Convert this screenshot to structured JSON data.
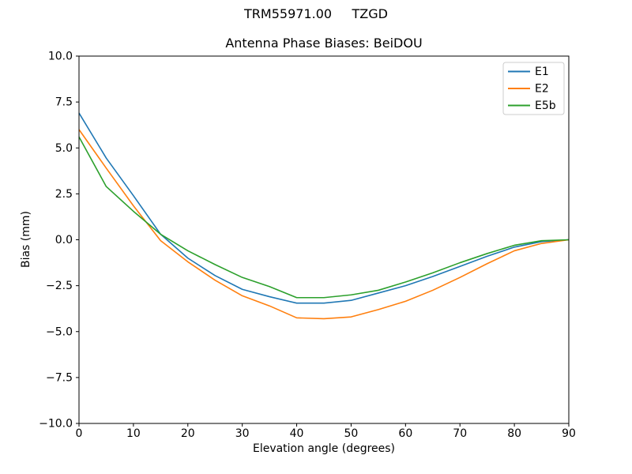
{
  "window": {
    "background": "#ffffff"
  },
  "suptitle": "TRM55971.00     TZGD",
  "chart_data": {
    "type": "line",
    "title": "Antenna Phase Biases: BeiDOU",
    "xlabel": "Elevation angle (degrees)",
    "ylabel": "Bias (mm)",
    "xlim": [
      0,
      90
    ],
    "ylim": [
      -10,
      10
    ],
    "xticks": [
      0,
      10,
      20,
      30,
      40,
      50,
      60,
      70,
      80,
      90
    ],
    "xtick_labels": [
      "0",
      "10",
      "20",
      "30",
      "40",
      "50",
      "60",
      "70",
      "80",
      "90"
    ],
    "yticks": [
      10.0,
      7.5,
      5.0,
      2.5,
      0.0,
      -2.5,
      -5.0,
      -7.5,
      -10.0
    ],
    "ytick_labels": [
      "10.0",
      "7.5",
      "5.0",
      "2.5",
      "0.0",
      "−2.5",
      "−5.0",
      "−7.5",
      "−10.0"
    ],
    "grid": false,
    "axis_color": "#000000",
    "legend": {
      "position": "upper right",
      "border_color": "#cccccc",
      "entries": [
        "E1",
        "E2",
        "E5b"
      ]
    },
    "x": [
      0,
      5,
      10,
      15,
      20,
      25,
      30,
      35,
      40,
      45,
      50,
      55,
      60,
      65,
      70,
      75,
      80,
      85,
      90
    ],
    "series": [
      {
        "name": "E1",
        "color": "#1f77b4",
        "values": [
          6.9,
          4.45,
          2.4,
          0.3,
          -1.0,
          -1.95,
          -2.7,
          -3.1,
          -3.45,
          -3.45,
          -3.3,
          -2.9,
          -2.5,
          -2.0,
          -1.45,
          -0.9,
          -0.4,
          -0.1,
          0.0
        ]
      },
      {
        "name": "E2",
        "color": "#ff7f0e",
        "values": [
          6.0,
          3.9,
          1.85,
          -0.05,
          -1.2,
          -2.2,
          -3.05,
          -3.6,
          -4.25,
          -4.3,
          -4.2,
          -3.8,
          -3.35,
          -2.75,
          -2.05,
          -1.3,
          -0.6,
          -0.2,
          0.0
        ]
      },
      {
        "name": "E5b",
        "color": "#2ca02c",
        "values": [
          5.6,
          2.9,
          1.55,
          0.3,
          -0.6,
          -1.35,
          -2.05,
          -2.55,
          -3.15,
          -3.15,
          -3.0,
          -2.75,
          -2.3,
          -1.8,
          -1.25,
          -0.75,
          -0.3,
          -0.05,
          0.0
        ]
      }
    ]
  }
}
